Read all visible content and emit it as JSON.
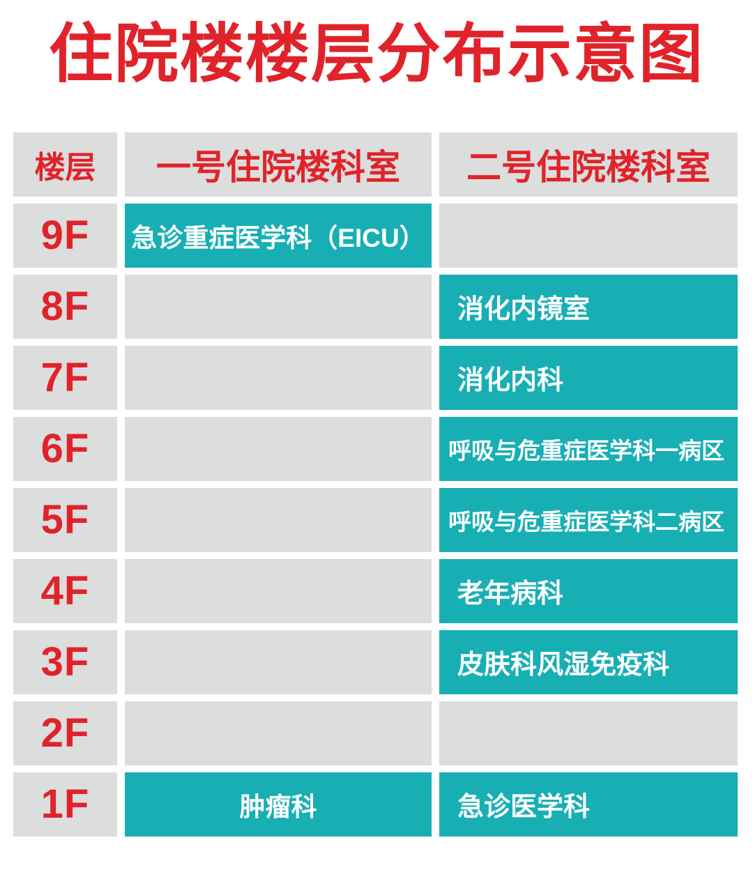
{
  "title": "住院楼楼层分布示意图",
  "colors": {
    "title_red": "#E0232A",
    "cell_gray": "#DCDDDD",
    "dept_teal": "#17AFB4",
    "dept_text": "#FFFFFF"
  },
  "table": {
    "headers": {
      "floor": "楼层",
      "building1": "一号住院楼科室",
      "building2": "二号住院楼科室"
    },
    "rows": [
      {
        "floor": "9F",
        "building1": "急诊重症医学科（EICU）",
        "building2": ""
      },
      {
        "floor": "8F",
        "building1": "",
        "building2": "消化内镜室"
      },
      {
        "floor": "7F",
        "building1": "",
        "building2": "消化内科"
      },
      {
        "floor": "6F",
        "building1": "",
        "building2": "呼吸与危重症医学科一病区"
      },
      {
        "floor": "5F",
        "building1": "",
        "building2": "呼吸与危重症医学科二病区"
      },
      {
        "floor": "4F",
        "building1": "",
        "building2": "老年病科"
      },
      {
        "floor": "3F",
        "building1": "",
        "building2": "皮肤科风湿免疫科"
      },
      {
        "floor": "2F",
        "building1": "",
        "building2": ""
      },
      {
        "floor": "1F",
        "building1": "肿瘤科",
        "building2": "急诊医学科"
      }
    ]
  }
}
